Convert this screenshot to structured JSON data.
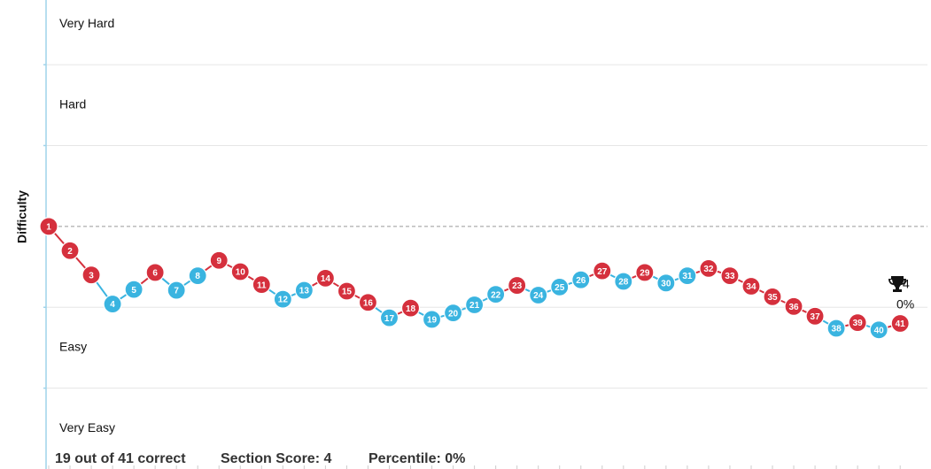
{
  "chart_data": {
    "type": "line",
    "y_axis_label": "Difficulty",
    "categories": [
      "1",
      "2",
      "3",
      "4",
      "5",
      "6",
      "7",
      "8",
      "9",
      "10",
      "11",
      "12",
      "13",
      "14",
      "15",
      "16",
      "17",
      "18",
      "19",
      "20",
      "21",
      "22",
      "23",
      "24",
      "25",
      "26",
      "27",
      "28",
      "29",
      "30",
      "31",
      "32",
      "33",
      "34",
      "35",
      "36",
      "37",
      "38",
      "39",
      "40",
      "41"
    ],
    "values": [
      3.0,
      2.7,
      2.4,
      2.04,
      2.22,
      2.43,
      2.21,
      2.39,
      2.58,
      2.44,
      2.28,
      2.1,
      2.21,
      2.36,
      2.2,
      2.06,
      1.87,
      1.99,
      1.85,
      1.93,
      2.03,
      2.16,
      2.27,
      2.15,
      2.25,
      2.34,
      2.45,
      2.32,
      2.43,
      2.3,
      2.39,
      2.48,
      2.39,
      2.26,
      2.13,
      2.01,
      1.89,
      1.74,
      1.81,
      1.72,
      1.8
    ],
    "correct": [
      false,
      false,
      false,
      true,
      true,
      false,
      true,
      true,
      false,
      false,
      false,
      true,
      true,
      false,
      false,
      false,
      true,
      false,
      true,
      true,
      true,
      true,
      false,
      true,
      true,
      true,
      false,
      true,
      false,
      true,
      true,
      false,
      false,
      false,
      false,
      false,
      false,
      true,
      false,
      true,
      false
    ],
    "correct_color": "#3ab4e0",
    "incorrect_color": "#d5303d",
    "ylim": [
      0,
      5.8
    ],
    "yticks": [
      {
        "value": 5.5,
        "label": "Very Hard"
      },
      {
        "value": 4.5,
        "label": "Hard"
      },
      {
        "value": 1.5,
        "label": "Easy"
      },
      {
        "value": 0.5,
        "label": "Very Easy"
      }
    ],
    "gridlines": [
      1,
      2,
      4,
      5
    ],
    "reference_line": 3,
    "score_marker": {
      "score": "4",
      "percentile": "0%"
    },
    "summary": [
      "19 out of 41 correct",
      "Section Score: 4",
      "Percentile: 0%"
    ]
  }
}
